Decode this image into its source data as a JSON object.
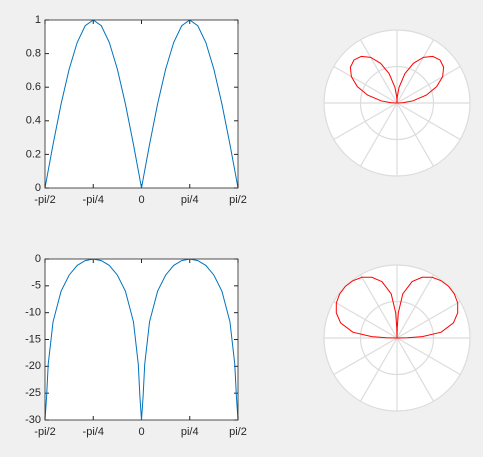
{
  "chart_data": [
    {
      "type": "line",
      "color": "#0072bd",
      "x": [
        -1.5708,
        -1.5446,
        -1.5184,
        -1.4399,
        -1.309,
        -1.1781,
        -1.0472,
        -0.9163,
        -0.7854,
        -0.6545,
        -0.5236,
        -0.3927,
        -0.2618,
        -0.1309,
        -0.0524,
        -0.0262,
        0,
        0.0262,
        0.0524,
        0.1309,
        0.2618,
        0.3927,
        0.5236,
        0.6545,
        0.7854,
        0.9163,
        1.0472,
        1.1781,
        1.309,
        1.4399,
        1.5184,
        1.5446,
        1.5708
      ],
      "values": [
        0,
        0.0523,
        0.1045,
        0.2588,
        0.5,
        0.7071,
        0.866,
        0.9659,
        1,
        0.9659,
        0.866,
        0.7071,
        0.5,
        0.2588,
        0.1045,
        0.0523,
        0,
        0.0523,
        0.1045,
        0.2588,
        0.5,
        0.7071,
        0.866,
        0.9659,
        1,
        0.9659,
        0.866,
        0.7071,
        0.5,
        0.2588,
        0.1045,
        0.0523,
        0
      ],
      "xlim": [
        -1.5708,
        1.5708
      ],
      "xticks": [
        {
          "value": -1.5708,
          "label": "-pi/2"
        },
        {
          "value": -0.7854,
          "label": "-pi/4"
        },
        0,
        {
          "value": 0.7854,
          "label": "pi/4"
        },
        {
          "value": 1.5708,
          "label": "pi/2"
        }
      ],
      "ylim": [
        0,
        1
      ],
      "yticks": [
        0,
        0.2,
        0.4,
        0.6,
        0.8,
        1
      ]
    },
    {
      "type": "polar",
      "color": "#ff0000",
      "theta": [
        -1.5708,
        -1.5446,
        -1.5184,
        -1.4399,
        -1.309,
        -1.1781,
        -1.0472,
        -0.9163,
        -0.7854,
        -0.6545,
        -0.5236,
        -0.3927,
        -0.2618,
        -0.1309,
        -0.0524,
        -0.0262,
        0,
        0.0262,
        0.0524,
        0.1309,
        0.2618,
        0.3927,
        0.5236,
        0.6545,
        0.7854,
        0.9163,
        1.0472,
        1.1781,
        1.309,
        1.4399,
        1.5184,
        1.5446,
        1.5708
      ],
      "r": [
        0,
        0.0523,
        0.1045,
        0.2588,
        0.5,
        0.7071,
        0.866,
        0.9659,
        1,
        0.9659,
        0.866,
        0.7071,
        0.5,
        0.2588,
        0.1045,
        0.0523,
        0,
        0.0523,
        0.1045,
        0.2588,
        0.5,
        0.7071,
        0.866,
        0.9659,
        1,
        0.9659,
        0.866,
        0.7071,
        0.5,
        0.2588,
        0.1045,
        0.0523,
        0
      ],
      "rlim": [
        0,
        1.2
      ],
      "rticks": [
        0.6,
        1.2
      ],
      "thetaticks": [
        0,
        0.5236,
        1.0472,
        1.5708,
        2.0944,
        2.618,
        3.1416,
        3.6652,
        4.1888,
        4.7124,
        5.236,
        5.7596
      ]
    },
    {
      "type": "line",
      "color": "#0072bd",
      "x": [
        -1.5708,
        -1.5446,
        -1.5184,
        -1.4399,
        -1.309,
        -1.1781,
        -1.0472,
        -0.9163,
        -0.7854,
        -0.6545,
        -0.5236,
        -0.3927,
        -0.2618,
        -0.1309,
        -0.0524,
        -0.0262,
        0,
        0.0262,
        0.0524,
        0.1309,
        0.2618,
        0.3927,
        0.5236,
        0.6545,
        0.7854,
        0.9163,
        1.0472,
        1.1781,
        1.309,
        1.4399,
        1.5184,
        1.5446,
        1.5708
      ],
      "values": [
        -30,
        -25.6,
        -19.6,
        -11.7,
        -6,
        -3,
        -1.2,
        -0.3,
        0,
        -0.3,
        -1.2,
        -3,
        -6,
        -11.7,
        -19.6,
        -25.6,
        -30,
        -25.6,
        -19.6,
        -11.7,
        -6,
        -3,
        -1.2,
        -0.3,
        0,
        -0.3,
        -1.2,
        -3,
        -6,
        -11.7,
        -19.6,
        -25.6,
        -30
      ],
      "xlim": [
        -1.5708,
        1.5708
      ],
      "xticks": [
        {
          "value": -1.5708,
          "label": "-pi/2"
        },
        {
          "value": -0.7854,
          "label": "-pi/4"
        },
        0,
        {
          "value": 0.7854,
          "label": "pi/4"
        },
        {
          "value": 1.5708,
          "label": "pi/2"
        }
      ],
      "ylim": [
        -30,
        0
      ],
      "yticks": [
        -30,
        -25,
        -20,
        -15,
        -10,
        -5,
        0
      ]
    },
    {
      "type": "polar",
      "color": "#ff0000",
      "theta": [
        -1.5708,
        -1.5446,
        -1.5184,
        -1.4399,
        -1.309,
        -1.1781,
        -1.0472,
        -0.9163,
        -0.7854,
        -0.6545,
        -0.5236,
        -0.3927,
        -0.2618,
        -0.1309,
        -0.0524,
        -0.0262,
        0,
        0.0262,
        0.0524,
        0.1309,
        0.2618,
        0.3927,
        0.5236,
        0.6545,
        0.7854,
        0.9163,
        1.0472,
        1.1781,
        1.309,
        1.4399,
        1.5184,
        1.5446,
        1.5708
      ],
      "r": [
        -30,
        -25.6,
        -19.6,
        -11.7,
        -6,
        -3,
        -1.2,
        -0.3,
        0,
        -0.3,
        -1.2,
        -3,
        -6,
        -11.7,
        -19.6,
        -25.6,
        -30,
        -25.6,
        -19.6,
        -11.7,
        -6,
        -3,
        -1.2,
        -0.3,
        0,
        -0.3,
        -1.2,
        -3,
        -6,
        -11.7,
        -19.6,
        -25.6,
        -30
      ],
      "rlim": [
        -30,
        0
      ],
      "rticks": [
        -15,
        0
      ],
      "thetaticks": [
        0,
        0.5236,
        1.0472,
        1.5708,
        2.0944,
        2.618,
        3.1416,
        3.6652,
        4.1888,
        4.7124,
        5.236,
        5.7596
      ]
    }
  ]
}
